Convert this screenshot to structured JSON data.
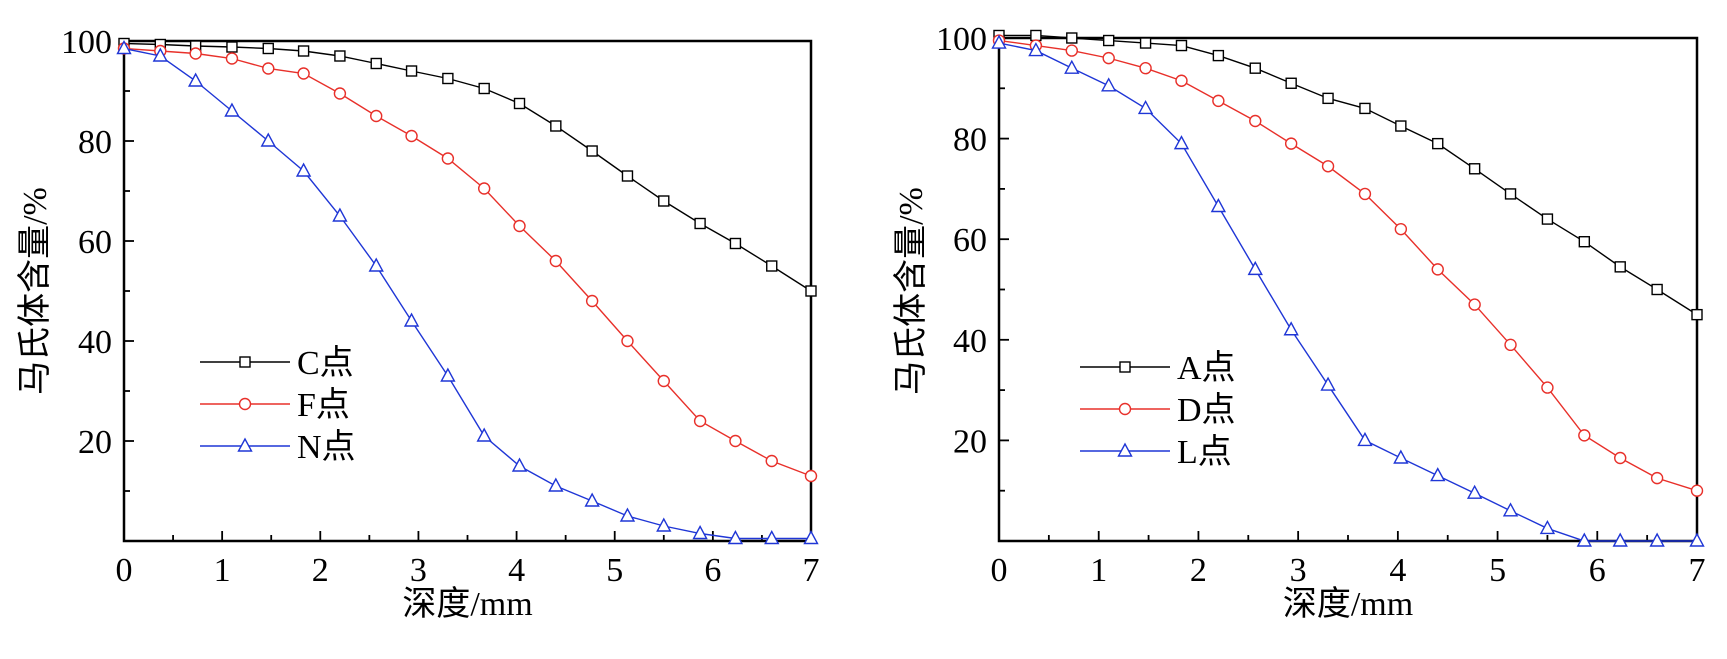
{
  "chart_data": [
    {
      "type": "line",
      "xlabel": "深度/mm",
      "ylabel": "马氏体含量/%",
      "xlim": [
        0,
        7
      ],
      "ylim": [
        0,
        100
      ],
      "xticks": [
        "0",
        "1",
        "2",
        "3",
        "4",
        "5",
        "6",
        "7"
      ],
      "yticks": [
        "20",
        "40",
        "60",
        "80",
        "100"
      ],
      "legend_position": "lower-left",
      "grid": false,
      "x": [
        0,
        0.37,
        0.73,
        1.1,
        1.47,
        1.83,
        2.2,
        2.57,
        2.93,
        3.3,
        3.67,
        4.03,
        4.4,
        4.77,
        5.13,
        5.5,
        5.87,
        6.23,
        6.6,
        7.0
      ],
      "series": [
        {
          "name": "C点",
          "color": "#000000",
          "marker": "square",
          "values": [
            99.5,
            99.3,
            99,
            98.8,
            98.5,
            98,
            97,
            95.5,
            94,
            92.5,
            90.5,
            87.5,
            83,
            78,
            73,
            68,
            63.5,
            59.5,
            55,
            50
          ]
        },
        {
          "name": "F点",
          "color": "#e8302a",
          "marker": "circle",
          "values": [
            98.5,
            98,
            97.5,
            96.5,
            94.5,
            93.5,
            89.5,
            85,
            81,
            76.5,
            70.5,
            63,
            56,
            48,
            40,
            32,
            24,
            20,
            16,
            13
          ]
        },
        {
          "name": "N点",
          "color": "#1f36d6",
          "marker": "triangle",
          "values": [
            98.5,
            97,
            92,
            86,
            80,
            74,
            65,
            55,
            44,
            33,
            21,
            15,
            11,
            8,
            5,
            3,
            1.5,
            0.5,
            0.5,
            0.5
          ]
        }
      ]
    },
    {
      "type": "line",
      "xlabel": "深度/mm",
      "ylabel": "马氏体含量/%",
      "xlim": [
        0,
        7
      ],
      "ylim": [
        0,
        100
      ],
      "xticks": [
        "0",
        "1",
        "2",
        "3",
        "4",
        "5",
        "6",
        "7"
      ],
      "yticks": [
        "20",
        "40",
        "60",
        "80",
        "100"
      ],
      "legend_position": "lower-left",
      "grid": false,
      "x": [
        0,
        0.37,
        0.73,
        1.1,
        1.47,
        1.83,
        2.2,
        2.57,
        2.93,
        3.3,
        3.67,
        4.03,
        4.4,
        4.77,
        5.13,
        5.5,
        5.87,
        6.23,
        6.6,
        7.0
      ],
      "series": [
        {
          "name": "A点",
          "color": "#000000",
          "marker": "square",
          "values": [
            100.5,
            100.5,
            100,
            99.5,
            99,
            98.5,
            96.5,
            94,
            91,
            88,
            86,
            82.5,
            79,
            74,
            69,
            64,
            59.5,
            54.5,
            50,
            45
          ]
        },
        {
          "name": "D点",
          "color": "#e8302a",
          "marker": "circle",
          "values": [
            99.5,
            98.5,
            97.5,
            96,
            94,
            91.5,
            87.5,
            83.5,
            79,
            74.5,
            69,
            62,
            54,
            47,
            39,
            30.5,
            21,
            16.5,
            12.5,
            10
          ]
        },
        {
          "name": "L点",
          "color": "#1f36d6",
          "marker": "triangle",
          "values": [
            99,
            97.5,
            94,
            90.5,
            86,
            79,
            66.5,
            54,
            42,
            31,
            20,
            16.5,
            13,
            9.5,
            6,
            2.5,
            0,
            0,
            0,
            0
          ]
        }
      ]
    }
  ]
}
